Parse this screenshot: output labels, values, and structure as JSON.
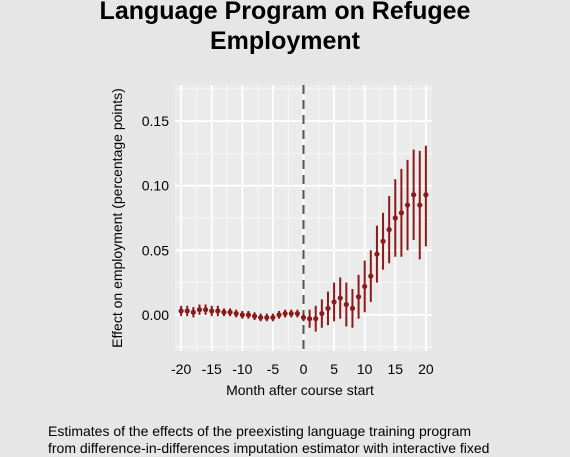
{
  "title_lines": [
    "Language Program on Refugee",
    "Employment"
  ],
  "caption_lines": [
    "Estimates of the effects of the preexisting language training program",
    "from difference-in-differences imputation estimator with interactive fixed"
  ],
  "chart_data": {
    "type": "scatter",
    "title": "Language Program on Refugee Employment",
    "xlabel": "Month after course start",
    "ylabel": "Effect on employment (percentage points)",
    "xlim": [
      -21,
      21
    ],
    "ylim": [
      -0.028,
      0.178
    ],
    "xticks": [
      -20,
      -15,
      -10,
      -5,
      0,
      5,
      10,
      15,
      20
    ],
    "xtick_labels": [
      "-20",
      "-15",
      "-10",
      "-5",
      "0",
      "5",
      "10",
      "15",
      "20"
    ],
    "yticks": [
      0.0,
      0.05,
      0.1,
      0.15
    ],
    "ytick_labels": [
      "0.00",
      "0.05",
      "0.10",
      "0.15"
    ],
    "grid": true,
    "reference_line_x": 0,
    "point_color": "#8b1a1a",
    "series": [
      {
        "x": [
          -20,
          -19,
          -18,
          -17,
          -16,
          -15,
          -14,
          -13,
          -12,
          -11,
          -10,
          -9,
          -8,
          -7,
          -6,
          -5,
          -4,
          -3,
          -2,
          -1,
          0,
          1,
          2,
          3,
          4,
          5,
          6,
          7,
          8,
          9,
          10,
          11,
          12,
          13,
          14,
          15,
          16,
          17,
          18,
          19,
          20
        ],
        "y": [
          0.003,
          0.003,
          0.002,
          0.004,
          0.004,
          0.003,
          0.003,
          0.002,
          0.002,
          0.001,
          0.0,
          0.0,
          -0.001,
          -0.002,
          -0.002,
          -0.002,
          0.0,
          0.001,
          0.001,
          0.001,
          -0.002,
          -0.003,
          -0.003,
          0.001,
          0.005,
          0.01,
          0.013,
          0.008,
          0.005,
          0.014,
          0.022,
          0.03,
          0.047,
          0.057,
          0.066,
          0.075,
          0.079,
          0.085,
          0.093,
          0.085,
          0.093
        ],
        "lower": [
          -0.001,
          -0.001,
          -0.002,
          0.0,
          0.0,
          -0.001,
          -0.001,
          -0.001,
          -0.001,
          -0.002,
          -0.003,
          -0.003,
          -0.004,
          -0.005,
          -0.005,
          -0.005,
          -0.003,
          -0.002,
          -0.002,
          -0.002,
          -0.005,
          -0.01,
          -0.013,
          -0.01,
          -0.008,
          -0.005,
          -0.003,
          -0.009,
          -0.01,
          -0.003,
          0.002,
          0.01,
          0.025,
          0.035,
          0.04,
          0.045,
          0.045,
          0.05,
          0.058,
          0.043,
          0.053
        ],
        "upper": [
          0.007,
          0.007,
          0.006,
          0.008,
          0.008,
          0.007,
          0.007,
          0.005,
          0.005,
          0.004,
          0.003,
          0.003,
          0.002,
          0.001,
          0.001,
          0.001,
          0.003,
          0.004,
          0.004,
          0.004,
          0.001,
          0.004,
          0.007,
          0.012,
          0.018,
          0.025,
          0.029,
          0.025,
          0.02,
          0.031,
          0.042,
          0.05,
          0.069,
          0.079,
          0.092,
          0.105,
          0.113,
          0.12,
          0.128,
          0.127,
          0.131
        ]
      }
    ]
  }
}
